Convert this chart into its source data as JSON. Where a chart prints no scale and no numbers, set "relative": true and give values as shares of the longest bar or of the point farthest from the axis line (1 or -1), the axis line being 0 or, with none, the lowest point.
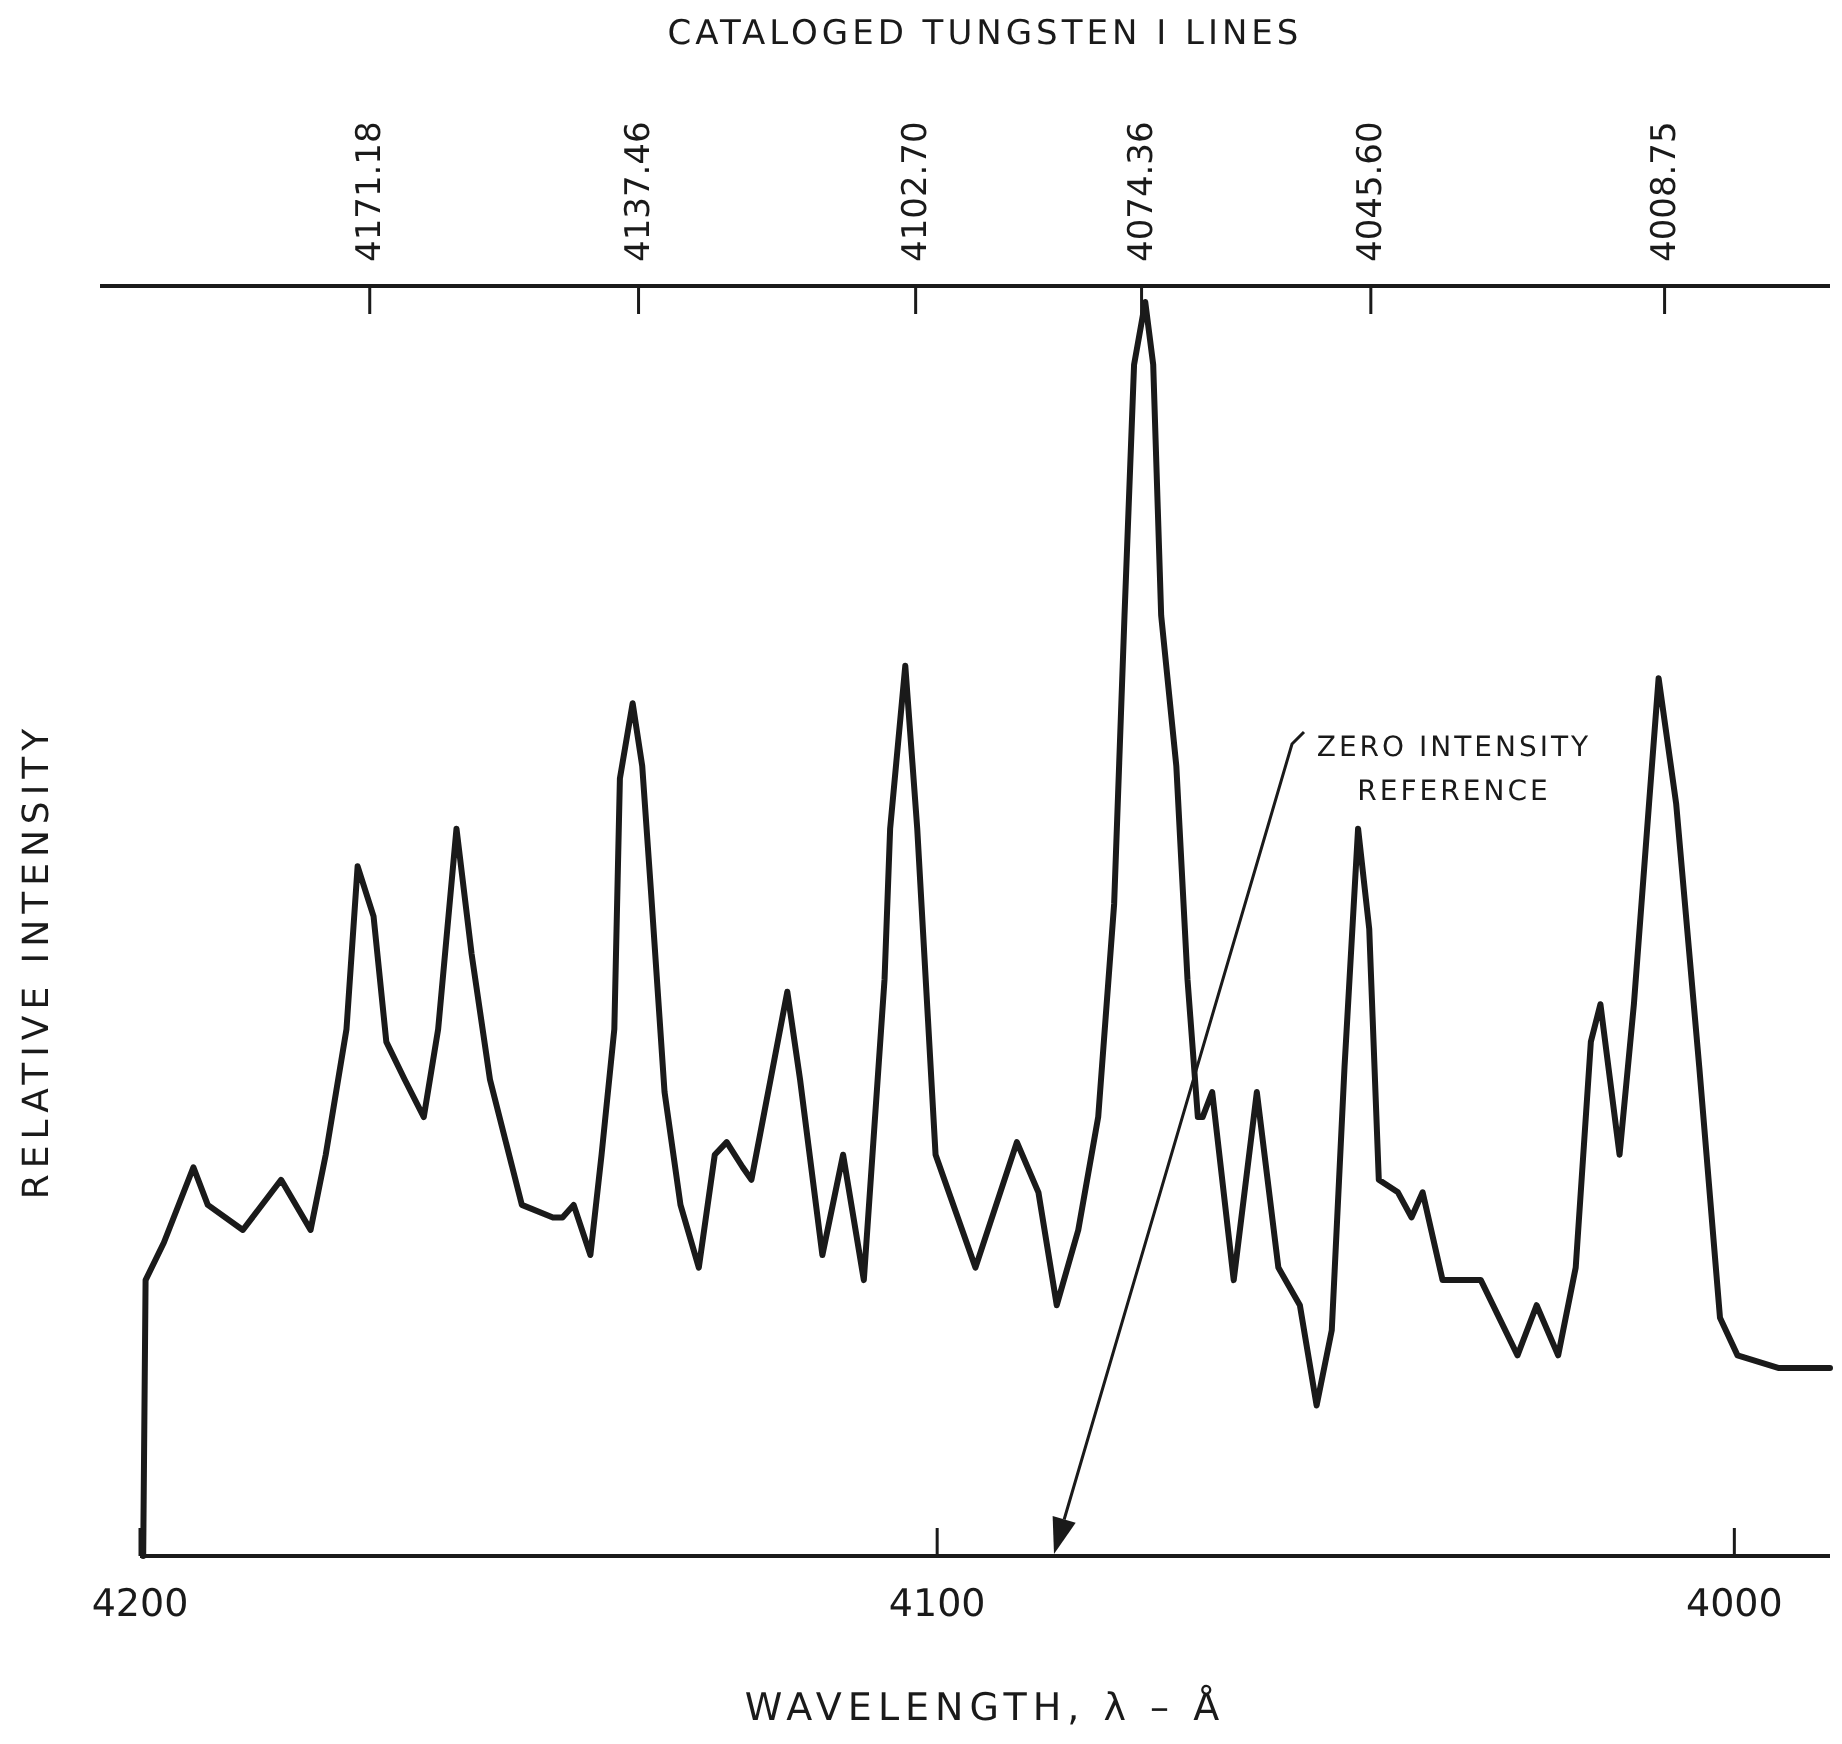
{
  "chart_data": {
    "type": "line",
    "relative": true,
    "xlabel": "WAVELENGTH, λ – Å",
    "ylabel": "RELATIVE INTENSITY",
    "x2label": "CATALOGED TUNGSTEN I LINES",
    "xlim": [
      4200,
      3988
    ],
    "xticks": [
      4200,
      4100,
      4000
    ],
    "x2lim": [
      4200,
      3988
    ],
    "x2ticks": [
      4171.18,
      4137.46,
      {
        "value": 4102.7,
        "label": "4102.70"
      },
      4074.36,
      {
        "value": 4045.6,
        "label": "4045.60"
      },
      4008.75
    ],
    "x": [
      4199.6,
      4199.3,
      4197.0,
      4193.3,
      4191.5,
      4187.1,
      4182.3,
      4178.6,
      4176.7,
      4174.1,
      4172.7,
      4170.7,
      4169.1,
      4166.8,
      4164.4,
      4162.6,
      4160.3,
      4158.4,
      4156.1,
      4152.1,
      4148.2,
      4147.0,
      4145.6,
      4143.5,
      4142.1,
      4140.5,
      4139.8,
      4138.2,
      4137.0,
      4135.9,
      4134.2,
      4132.2,
      4129.9,
      4127.9,
      4126.4,
      4124.4,
      4123.3,
      4120.9,
      4118.8,
      4117.2,
      4114.4,
      4111.8,
      4109.2,
      4106.6,
      4105.9,
      4104.0,
      4102.5,
      4100.2,
      4095.2,
      4090.0,
      4087.3,
      4085.0,
      4082.3,
      4079.8,
      4077.8,
      4076.5,
      4075.3,
      4073.9,
      4072.9,
      4071.9,
      4070.0,
      4068.6,
      4067.3,
      4066.7,
      4065.5,
      4062.8,
      4059.9,
      4057.2,
      4054.5,
      4052.4,
      4050.5,
      4048.9,
      4047.2,
      4045.8,
      4044.6,
      4042.2,
      4040.5,
      4039.1,
      4036.6,
      4034.2,
      4031.8,
      4027.2,
      4024.8,
      4022.1,
      4019.9,
      4018.0,
      4016.8,
      4014.4,
      4012.6,
      4010.7,
      4009.5,
      4007.3,
      4004.4,
      4001.8,
      3999.6,
      3994.5,
      3990.9,
      3988.0
    ],
    "series": [
      {
        "color": "#1a1a1a",
        "line_style": "solid",
        "marker": "none",
        "values": [
          0.0,
          0.22,
          0.25,
          0.31,
          0.28,
          0.26,
          0.3,
          0.26,
          0.32,
          0.42,
          0.55,
          0.51,
          0.41,
          0.38,
          0.35,
          0.42,
          0.58,
          0.48,
          0.38,
          0.28,
          0.27,
          0.27,
          0.28,
          0.24,
          0.32,
          0.42,
          0.62,
          0.68,
          0.63,
          0.53,
          0.37,
          0.28,
          0.23,
          0.32,
          0.33,
          0.31,
          0.3,
          0.38,
          0.45,
          0.38,
          0.24,
          0.32,
          0.22,
          0.46,
          0.58,
          0.71,
          0.58,
          0.32,
          0.23,
          0.33,
          0.29,
          0.2,
          0.26,
          0.35,
          0.52,
          0.75,
          0.95,
          1.0,
          0.95,
          0.75,
          0.63,
          0.46,
          0.35,
          0.35,
          0.37,
          0.22,
          0.37,
          0.23,
          0.2,
          0.12,
          0.18,
          0.39,
          0.58,
          0.5,
          0.3,
          0.29,
          0.27,
          0.29,
          0.22,
          0.22,
          0.22,
          0.16,
          0.2,
          0.16,
          0.23,
          0.41,
          0.44,
          0.32,
          0.44,
          0.6,
          0.7,
          0.6,
          0.39,
          0.19,
          0.16,
          0.15,
          0.15,
          0.15
        ]
      }
    ],
    "annotations": [
      "ZERO INTENSITY REFERENCE"
    ]
  }
}
